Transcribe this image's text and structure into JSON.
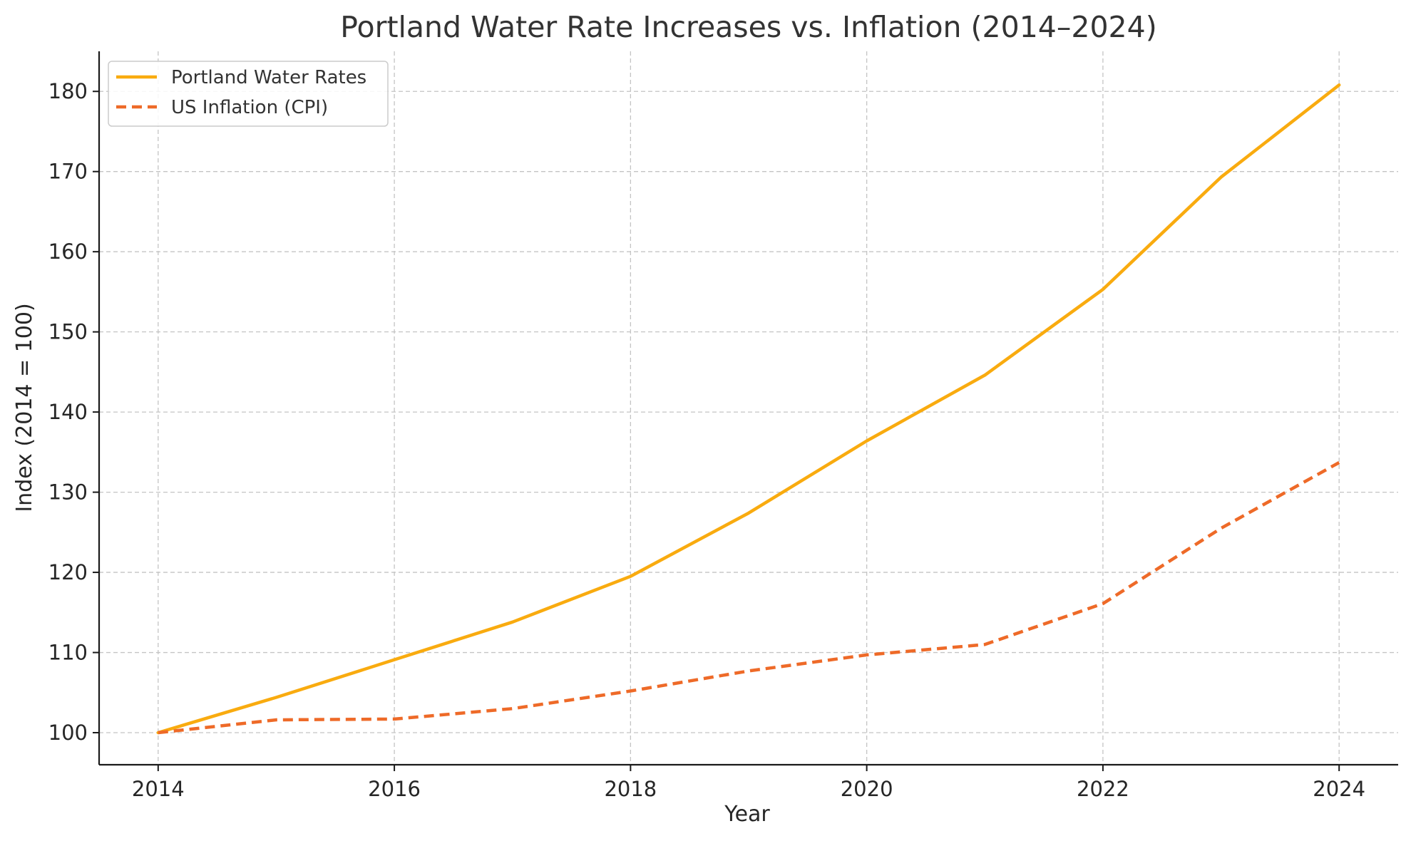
{
  "chart_data": {
    "type": "line",
    "title": "Portland Water Rate Increases vs. Inflation (2014–2024)",
    "xlabel": "Year",
    "ylabel": "Index (2014 = 100)",
    "x": [
      2014,
      2015,
      2016,
      2017,
      2018,
      2019,
      2020,
      2021,
      2022,
      2023,
      2024
    ],
    "xlim": [
      2013.5,
      2024.5
    ],
    "ylim": [
      96,
      185
    ],
    "xticks": [
      "2014",
      "2016",
      "2018",
      "2020",
      "2022",
      "2024"
    ],
    "yticks": [
      "100",
      "110",
      "120",
      "130",
      "140",
      "150",
      "160",
      "170",
      "180"
    ],
    "grid": true,
    "legend_position": "top-left",
    "series": [
      {
        "name": "Portland Water Rates",
        "color": "#f9ab0f",
        "style": "solid",
        "values": [
          100,
          104.4,
          109.1,
          113.8,
          119.5,
          127.4,
          136.4,
          144.6,
          155.3,
          169.3,
          180.8
        ]
      },
      {
        "name": "US Inflation (CPI)",
        "color": "#ee6a28",
        "style": "dashed",
        "values": [
          100,
          101.6,
          101.7,
          103.0,
          105.2,
          107.7,
          109.7,
          111.0,
          116.1,
          125.5,
          133.7
        ]
      }
    ]
  }
}
